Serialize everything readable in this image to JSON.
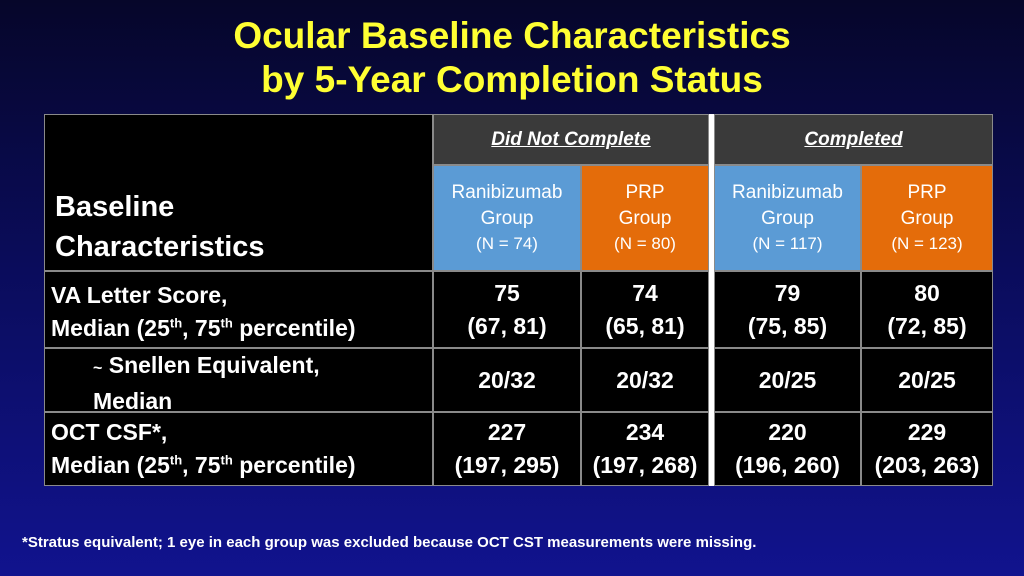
{
  "title": {
    "line1": "Ocular Baseline Characteristics",
    "line2": "by 5-Year Completion Status"
  },
  "header": {
    "baseline_line1": "Baseline",
    "baseline_line2": "Characteristics",
    "did_not_complete": "Did Not Complete",
    "completed": "Completed",
    "groups": [
      {
        "line1": "Ranibizumab",
        "line2": "Group",
        "n": "(N = 74)"
      },
      {
        "line1": "PRP",
        "line2": "Group",
        "n": "(N = 80)"
      },
      {
        "line1": "Ranibizumab",
        "line2": "Group",
        "n": "(N = 117)"
      },
      {
        "line1": "PRP",
        "line2": "Group",
        "n": "(N = 123)"
      }
    ]
  },
  "rows": {
    "va": {
      "label1": "VA Letter Score,",
      "label2_a": "Median  (25",
      "label2_sup1": "th",
      "label2_b": ", 75",
      "label2_sup2": "th",
      "label2_c": " percentile)",
      "values": [
        {
          "median": "75",
          "range": "(67, 81)"
        },
        {
          "median": "74",
          "range": "(65, 81)"
        },
        {
          "median": "79",
          "range": "(75, 85)"
        },
        {
          "median": "80",
          "range": "(72, 85)"
        }
      ]
    },
    "snellen": {
      "tilde": "~",
      "label1": " Snellen Equivalent,",
      "label2": "Median",
      "values": [
        "20/32",
        "20/32",
        "20/25",
        "20/25"
      ]
    },
    "oct": {
      "label1": "OCT CSF*,",
      "label2_a": "Median  (25",
      "label2_sup1": "th",
      "label2_b": ", 75",
      "label2_sup2": "th",
      "label2_c": " percentile)",
      "values": [
        {
          "median": "227",
          "range": "(197, 295)"
        },
        {
          "median": "234",
          "range": "(197, 268)"
        },
        {
          "median": "220",
          "range": "(196, 260)"
        },
        {
          "median": "229",
          "range": "(203, 263)"
        }
      ]
    }
  },
  "footnote": "*Stratus equivalent; 1 eye in each group was excluded because OCT CST measurements were missing.",
  "colors": {
    "title": "#ffff33",
    "ranibizumab": "#5b9bd5",
    "prp": "#e46c0a",
    "header_bg": "#3a3a3a"
  }
}
